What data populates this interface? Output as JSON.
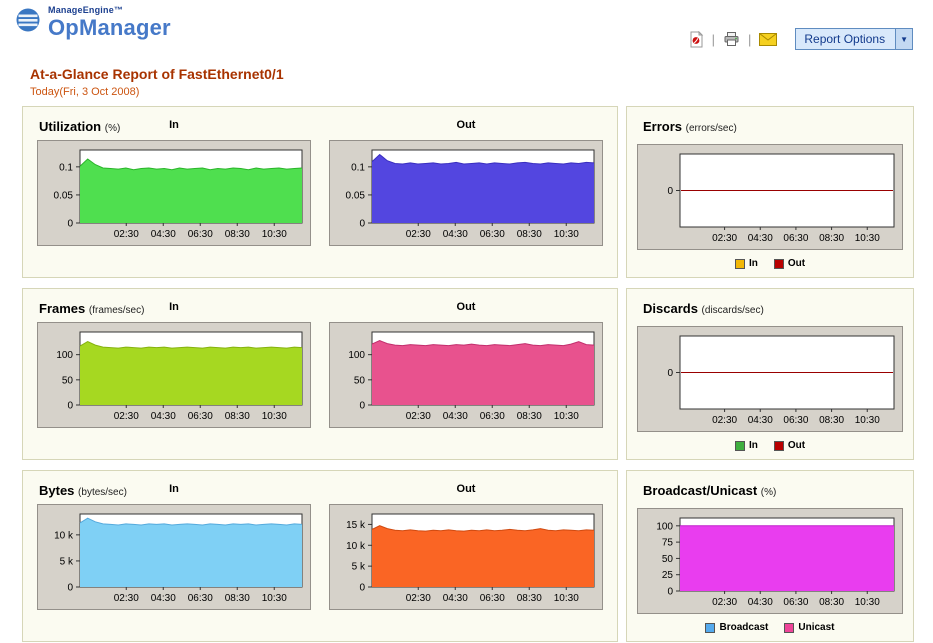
{
  "header": {
    "brand_small": "ManageEngine™",
    "brand_large": "OpManager",
    "report_options_label": "Report Options"
  },
  "title": {
    "main": "At-a-Glance Report of  FastEthernet0/1",
    "date": "Today(Fri, 3 Oct 2008)"
  },
  "panels": [
    {
      "title": "Utilization",
      "unit": "(%)",
      "in_label": "In",
      "out_label": "Out"
    },
    {
      "title": "Errors",
      "unit": "(errors/sec)",
      "legend": [
        {
          "label": "In",
          "color": "#f2b705"
        },
        {
          "label": "Out",
          "color": "#b80000"
        }
      ]
    },
    {
      "title": "Frames",
      "unit": "(frames/sec)",
      "in_label": "In",
      "out_label": "Out"
    },
    {
      "title": "Discards",
      "unit": "(discards/sec)",
      "legend": [
        {
          "label": "In",
          "color": "#3faf3f"
        },
        {
          "label": "Out",
          "color": "#b80000"
        }
      ]
    },
    {
      "title": "Bytes",
      "unit": "(bytes/sec)",
      "in_label": "In",
      "out_label": "Out"
    },
    {
      "title": "Broadcast/Unicast",
      "unit": "(%)",
      "legend": [
        {
          "label": "Broadcast",
          "color": "#55aaee"
        },
        {
          "label": "Unicast",
          "color": "#ee4499"
        }
      ]
    }
  ],
  "chart_data": [
    {
      "name": "utilization-in",
      "type": "area",
      "color": "#4fdf4f",
      "stroke": "#2ab52a",
      "xlim": [
        0,
        12
      ],
      "ylim": [
        0,
        0.13
      ],
      "yticks": [
        [
          0,
          "0"
        ],
        [
          0.05,
          "0.05"
        ],
        [
          0.1,
          "0.1"
        ]
      ],
      "xticks": [
        [
          2.5,
          "02:30"
        ],
        [
          4.5,
          "04:30"
        ],
        [
          6.5,
          "06:30"
        ],
        [
          8.5,
          "08:30"
        ],
        [
          10.5,
          "10:30"
        ]
      ],
      "values": [
        0.101,
        0.114,
        0.104,
        0.098,
        0.097,
        0.096,
        0.098,
        0.095,
        0.097,
        0.098,
        0.096,
        0.097,
        0.095,
        0.098,
        0.096,
        0.097,
        0.098,
        0.095,
        0.097,
        0.096,
        0.098,
        0.097,
        0.095,
        0.098,
        0.096,
        0.097,
        0.098,
        0.096,
        0.097,
        0.098
      ]
    },
    {
      "name": "utilization-out",
      "type": "area",
      "color": "#5346e0",
      "stroke": "#3a2fc0",
      "xlim": [
        0,
        12
      ],
      "ylim": [
        0,
        0.13
      ],
      "yticks": [
        [
          0,
          "0"
        ],
        [
          0.05,
          "0.05"
        ],
        [
          0.1,
          "0.1"
        ]
      ],
      "xticks": [
        [
          2.5,
          "02:30"
        ],
        [
          4.5,
          "04:30"
        ],
        [
          6.5,
          "06:30"
        ],
        [
          8.5,
          "08:30"
        ],
        [
          10.5,
          "10:30"
        ]
      ],
      "values": [
        0.109,
        0.122,
        0.111,
        0.106,
        0.105,
        0.107,
        0.105,
        0.106,
        0.107,
        0.105,
        0.106,
        0.108,
        0.105,
        0.106,
        0.107,
        0.105,
        0.107,
        0.106,
        0.105,
        0.107,
        0.108,
        0.106,
        0.105,
        0.107,
        0.106,
        0.105,
        0.107,
        0.106,
        0.108,
        0.107
      ]
    },
    {
      "name": "errors",
      "type": "zero-line",
      "color": "#990000",
      "xlim": [
        0,
        12
      ],
      "ylim": [
        -1,
        1
      ],
      "yticks": [
        [
          0,
          "0"
        ]
      ],
      "xticks": [
        [
          2.5,
          "02:30"
        ],
        [
          4.5,
          "04:30"
        ],
        [
          6.5,
          "06:30"
        ],
        [
          8.5,
          "08:30"
        ],
        [
          10.5,
          "10:30"
        ]
      ],
      "values": []
    },
    {
      "name": "frames-in",
      "type": "area",
      "color": "#a6d821",
      "stroke": "#85b210",
      "xlim": [
        0,
        12
      ],
      "ylim": [
        0,
        145
      ],
      "yticks": [
        [
          0,
          "0"
        ],
        [
          50,
          "50"
        ],
        [
          100,
          "100"
        ]
      ],
      "xticks": [
        [
          2.5,
          "02:30"
        ],
        [
          4.5,
          "04:30"
        ],
        [
          6.5,
          "06:30"
        ],
        [
          8.5,
          "08:30"
        ],
        [
          10.5,
          "10:30"
        ]
      ],
      "values": [
        117,
        126,
        119,
        115,
        114,
        113,
        115,
        114,
        113,
        115,
        114,
        115,
        113,
        114,
        115,
        114,
        113,
        115,
        114,
        113,
        115,
        114,
        115,
        113,
        114,
        115,
        114,
        113,
        115,
        114
      ]
    },
    {
      "name": "frames-out",
      "type": "area",
      "color": "#e8528e",
      "stroke": "#c22e6d",
      "xlim": [
        0,
        12
      ],
      "ylim": [
        0,
        145
      ],
      "yticks": [
        [
          0,
          "0"
        ],
        [
          50,
          "50"
        ],
        [
          100,
          "100"
        ]
      ],
      "xticks": [
        [
          2.5,
          "02:30"
        ],
        [
          4.5,
          "04:30"
        ],
        [
          6.5,
          "06:30"
        ],
        [
          8.5,
          "08:30"
        ],
        [
          10.5,
          "10:30"
        ]
      ],
      "values": [
        121,
        128,
        122,
        119,
        118,
        120,
        119,
        118,
        120,
        119,
        118,
        120,
        119,
        121,
        119,
        118,
        120,
        119,
        118,
        120,
        122,
        119,
        118,
        120,
        119,
        118,
        121,
        126,
        120,
        119
      ]
    },
    {
      "name": "discards",
      "type": "zero-line",
      "color": "#990000",
      "xlim": [
        0,
        12
      ],
      "ylim": [
        -1,
        1
      ],
      "yticks": [
        [
          0,
          "0"
        ]
      ],
      "xticks": [
        [
          2.5,
          "02:30"
        ],
        [
          4.5,
          "04:30"
        ],
        [
          6.5,
          "06:30"
        ],
        [
          8.5,
          "08:30"
        ],
        [
          10.5,
          "10:30"
        ]
      ],
      "values": []
    },
    {
      "name": "bytes-in",
      "type": "area",
      "color": "#7fd0f5",
      "stroke": "#55aadd",
      "xlim": [
        0,
        12
      ],
      "ylim": [
        0,
        14000
      ],
      "yticks": [
        [
          0,
          "0"
        ],
        [
          5000,
          "5 k"
        ],
        [
          10000,
          "10 k"
        ]
      ],
      "xticks": [
        [
          2.5,
          "02:30"
        ],
        [
          4.5,
          "04:30"
        ],
        [
          6.5,
          "06:30"
        ],
        [
          8.5,
          "08:30"
        ],
        [
          10.5,
          "10:30"
        ]
      ],
      "values": [
        12300,
        13200,
        12500,
        12100,
        12000,
        11900,
        12100,
        12000,
        11900,
        12100,
        12000,
        12100,
        11900,
        12000,
        12100,
        12000,
        11900,
        12100,
        12000,
        11900,
        12100,
        12000,
        12100,
        11900,
        12000,
        12100,
        12000,
        11900,
        12100,
        12000
      ]
    },
    {
      "name": "bytes-out",
      "type": "area",
      "color": "#fa6524",
      "stroke": "#d04a10",
      "xlim": [
        0,
        12
      ],
      "ylim": [
        0,
        17500
      ],
      "yticks": [
        [
          0,
          "0"
        ],
        [
          5000,
          "5 k"
        ],
        [
          10000,
          "10 k"
        ],
        [
          15000,
          "15 k"
        ]
      ],
      "xticks": [
        [
          2.5,
          "02:30"
        ],
        [
          4.5,
          "04:30"
        ],
        [
          6.5,
          "06:30"
        ],
        [
          8.5,
          "08:30"
        ],
        [
          10.5,
          "10:30"
        ]
      ],
      "values": [
        13800,
        14700,
        14000,
        13600,
        13500,
        13700,
        13500,
        13400,
        13600,
        13500,
        13700,
        13500,
        13400,
        13600,
        13500,
        13700,
        13500,
        13600,
        13800,
        13600,
        13500,
        13700,
        14000,
        13600,
        13500,
        13700,
        13600,
        13500,
        13700,
        13600
      ]
    },
    {
      "name": "broadcast-unicast",
      "type": "area",
      "color": "#e93def",
      "stroke": "#c020cc",
      "xlim": [
        0,
        12
      ],
      "ylim": [
        0,
        112
      ],
      "yticks": [
        [
          0,
          "0"
        ],
        [
          25,
          "25"
        ],
        [
          50,
          "50"
        ],
        [
          75,
          "75"
        ],
        [
          100,
          "100"
        ]
      ],
      "xticks": [
        [
          2.5,
          "02:30"
        ],
        [
          4.5,
          "04:30"
        ],
        [
          6.5,
          "06:30"
        ],
        [
          8.5,
          "08:30"
        ],
        [
          10.5,
          "10:30"
        ]
      ],
      "values": [
        100,
        100,
        100,
        100,
        100,
        100,
        100,
        100,
        100,
        100,
        100,
        100,
        100,
        100,
        100,
        100,
        100,
        100,
        100,
        100,
        100,
        100,
        100,
        100,
        100,
        100,
        100,
        100,
        100,
        100
      ]
    }
  ]
}
